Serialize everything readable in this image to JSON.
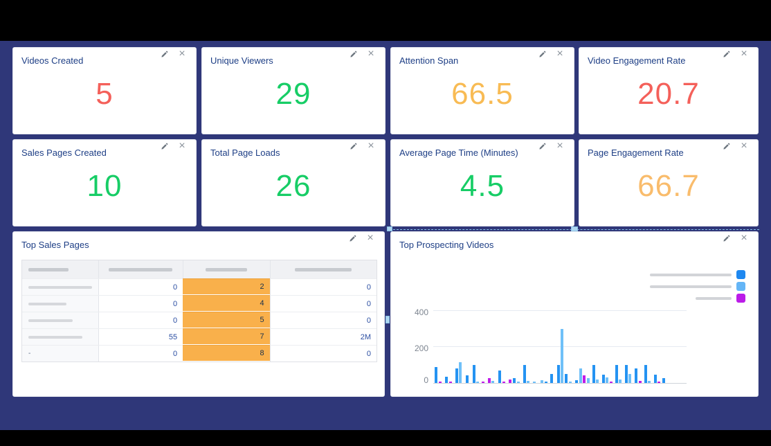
{
  "theme": {
    "background": "#000000",
    "canvas": "#2f3779",
    "card_bg": "#ffffff",
    "title_color": "#1d3e85",
    "red": "#f4605a",
    "green": "#17cd66",
    "yellow": "#f8bb54",
    "yellow2": "#f9bc6c",
    "highlight_orange": "#f9b04b",
    "table_value_blue": "#2b4ea2",
    "selection_blue": "#86c2ea"
  },
  "icons": {
    "edit": "pencil-icon",
    "close_glyph": "×"
  },
  "metric_cards": [
    {
      "title": "Videos Created",
      "value": "5",
      "color": "red"
    },
    {
      "title": "Unique Viewers",
      "value": "29",
      "color": "green"
    },
    {
      "title": "Attention Span",
      "value": "66.5",
      "color": "yellow"
    },
    {
      "title": "Video Engagement Rate",
      "value": "20.7",
      "color": "red"
    },
    {
      "title": "Sales Pages Created",
      "value": "10",
      "color": "green"
    },
    {
      "title": "Total Page Loads",
      "value": "26",
      "color": "green"
    },
    {
      "title": "Average Page Time (Minutes)",
      "value": "4.5",
      "color": "green"
    },
    {
      "title": "Page Engagement Rate",
      "value": "66.7",
      "color": "yellow2"
    }
  ],
  "table_card": {
    "title": "Top Sales Pages",
    "header_placeholder_widths": [
      58,
      92,
      60,
      82
    ],
    "row_label_widths": [
      92,
      55,
      64,
      78,
      null
    ],
    "row_label_texts": [
      null,
      null,
      null,
      null,
      "-"
    ],
    "rows": [
      {
        "values": [
          "0",
          "2",
          "0"
        ]
      },
      {
        "values": [
          "0",
          "4",
          "0"
        ]
      },
      {
        "values": [
          "0",
          "5",
          "0"
        ]
      },
      {
        "values": [
          "55",
          "7",
          "2M"
        ]
      },
      {
        "values": [
          "0",
          "8",
          "0"
        ]
      }
    ],
    "highlighted_column_index": 2
  },
  "chart_card": {
    "title": "Top Prospecting Videos",
    "legend": [
      {
        "color": "#1e88f0",
        "label_placeholder_width": 118
      },
      {
        "color": "#64b5f6",
        "label_placeholder_width": 118
      },
      {
        "color": "#bb1ce8",
        "label_placeholder_width": 52
      }
    ]
  },
  "chart_data": {
    "type": "bar",
    "title": "Top Prospecting Videos",
    "ylabel": "",
    "xlabel": "",
    "yticks": [
      0,
      200,
      400
    ],
    "ylim": [
      0,
      430
    ],
    "x_labels_visible": false,
    "legend_labels_redacted": true,
    "grid": true,
    "legend_position": "top-right",
    "series_colors": {
      "b": "#2493f2",
      "l": "#6fc0f8",
      "m": "#c01de9"
    },
    "bars": [
      {
        "s": "b",
        "v": 90,
        "g": 2
      },
      {
        "s": "m",
        "v": 8,
        "g": 2
      },
      {
        "s": "b",
        "v": 35,
        "g": 5
      },
      {
        "s": "m",
        "v": 8,
        "g": 2
      },
      {
        "s": "b",
        "v": 80,
        "g": 5
      },
      {
        "s": "l",
        "v": 115,
        "g": 1
      },
      {
        "s": "b",
        "v": 42,
        "g": 6
      },
      {
        "s": "b",
        "v": 100,
        "g": 6
      },
      {
        "s": "l",
        "v": 8,
        "g": 1
      },
      {
        "s": "m",
        "v": 8,
        "g": 4
      },
      {
        "s": "m",
        "v": 28,
        "g": 5
      },
      {
        "s": "l",
        "v": 10,
        "g": 1
      },
      {
        "s": "b",
        "v": 70,
        "g": 6
      },
      {
        "s": "m",
        "v": 8,
        "g": 2
      },
      {
        "s": "m",
        "v": 20,
        "g": 5
      },
      {
        "s": "b",
        "v": 28,
        "g": 2
      },
      {
        "s": "l",
        "v": 8,
        "g": 2
      },
      {
        "s": "b",
        "v": 100,
        "g": 5
      },
      {
        "s": "l",
        "v": 12,
        "g": 1
      },
      {
        "s": "l",
        "v": 8,
        "g": 5
      },
      {
        "s": "l",
        "v": 15,
        "g": 7
      },
      {
        "s": "b",
        "v": 8,
        "g": 2
      },
      {
        "s": "b",
        "v": 50,
        "g": 4
      },
      {
        "s": "b",
        "v": 100,
        "g": 6
      },
      {
        "s": "l",
        "v": 300,
        "g": 1
      },
      {
        "s": "b",
        "v": 50,
        "g": 2
      },
      {
        "s": "l",
        "v": 8,
        "g": 2
      },
      {
        "s": "b",
        "v": 14,
        "g": 5
      },
      {
        "s": "l",
        "v": 80,
        "g": 2
      },
      {
        "s": "m",
        "v": 42,
        "g": 1
      },
      {
        "s": "l",
        "v": 25,
        "g": 2
      },
      {
        "s": "b",
        "v": 100,
        "g": 4
      },
      {
        "s": "l",
        "v": 20,
        "g": 1
      },
      {
        "s": "b",
        "v": 45,
        "g": 5
      },
      {
        "s": "l",
        "v": 32,
        "g": 1
      },
      {
        "s": "m",
        "v": 8,
        "g": 2
      },
      {
        "s": "b",
        "v": 100,
        "g": 4
      },
      {
        "s": "l",
        "v": 18,
        "g": 1
      },
      {
        "s": "b",
        "v": 100,
        "g": 5
      },
      {
        "s": "l",
        "v": 50,
        "g": 1
      },
      {
        "s": "b",
        "v": 80,
        "g": 5
      },
      {
        "s": "m",
        "v": 12,
        "g": 2
      },
      {
        "s": "b",
        "v": 100,
        "g": 4
      },
      {
        "s": "l",
        "v": 10,
        "g": 1
      },
      {
        "s": "b",
        "v": 45,
        "g": 5
      },
      {
        "s": "m",
        "v": 8,
        "g": 1
      },
      {
        "s": "b",
        "v": 28,
        "g": 3
      }
    ]
  }
}
